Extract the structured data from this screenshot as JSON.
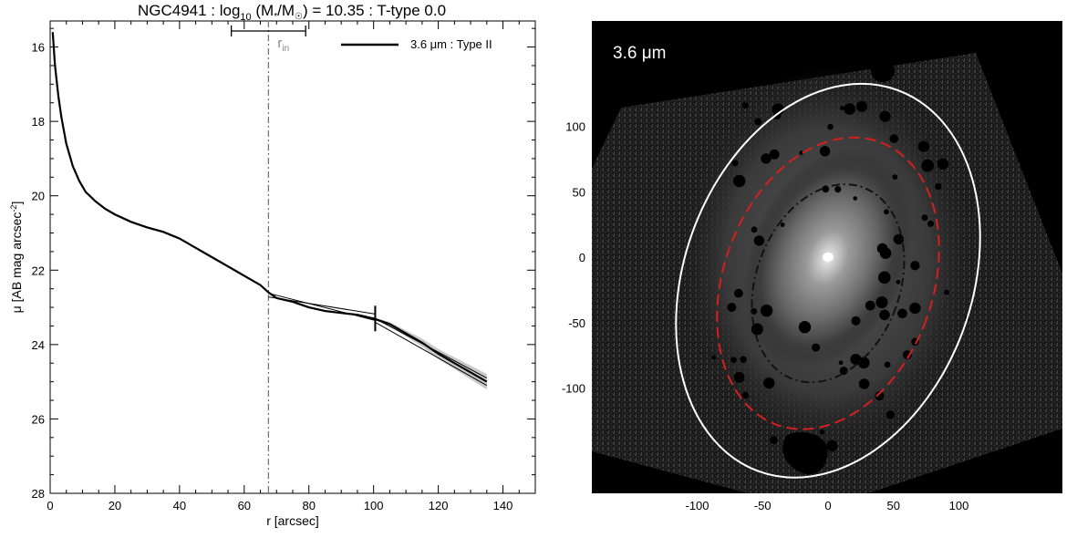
{
  "chart_data": [
    {
      "type": "line",
      "title": {
        "prefix": "NGC4941 : log",
        "sub10": "10",
        "paren_open": " (M",
        "star": "*",
        "slash_m": "/M",
        "sun": "☉",
        "rest": ") = 10.35 : T-type 0.0"
      },
      "xlabel": "r [arcsec]",
      "ylabel": {
        "prefix": "μ [AB mag arcsec",
        "sup": "-2",
        "suffix": "]"
      },
      "xlim": [
        0,
        150
      ],
      "ylim": [
        28,
        15.3
      ],
      "y_inverted": true,
      "xticks": [
        "0",
        "20",
        "40",
        "60",
        "80",
        "100",
        "120",
        "140"
      ],
      "yticks": [
        "16",
        "18",
        "20",
        "22",
        "24",
        "26",
        "28"
      ],
      "legend": {
        "position": "top-right",
        "label": "3.6 μm : Type II"
      },
      "r_in_label": "r",
      "r_in_sub": "in",
      "r_in": 67.5,
      "r_in_range": [
        56,
        79
      ],
      "break_marker": 100.5,
      "series": [
        {
          "name": "3.6 μm : Type II",
          "x": [
            0.8,
            1.5,
            2.5,
            3.5,
            5,
            7,
            9,
            11,
            14,
            17,
            20,
            25,
            30,
            35,
            40,
            45,
            50,
            55,
            60,
            65,
            67.5,
            70,
            75,
            80,
            85,
            90,
            95,
            100,
            105,
            110,
            115,
            120,
            125,
            130,
            135
          ],
          "y": [
            15.6,
            16.5,
            17.3,
            17.9,
            18.6,
            19.2,
            19.6,
            19.9,
            20.15,
            20.35,
            20.5,
            20.7,
            20.85,
            20.97,
            21.15,
            21.4,
            21.65,
            21.9,
            22.15,
            22.4,
            22.6,
            22.75,
            22.85,
            23.0,
            23.1,
            23.15,
            23.2,
            23.3,
            23.45,
            23.7,
            23.95,
            24.25,
            24.5,
            24.75,
            25.0
          ]
        }
      ],
      "fit_lines": [
        {
          "x": [
            67.5,
            100.5
          ],
          "y": [
            22.72,
            23.18
          ]
        },
        {
          "x": [
            67.5,
            100.5
          ],
          "y": [
            22.62,
            23.35
          ]
        },
        {
          "x": [
            100.5,
            135
          ],
          "y": [
            23.3,
            24.9
          ]
        },
        {
          "x": [
            100.5,
            135
          ],
          "y": [
            23.4,
            25.1
          ]
        }
      ]
    },
    {
      "type": "image",
      "label": "3.6 μm",
      "xticks": [
        "-100",
        "-50",
        "0",
        "50",
        "100"
      ],
      "yticks": [
        "100",
        "50",
        "0",
        "-50",
        "-100"
      ],
      "xlim": [
        -180,
        180
      ],
      "ylim": [
        -180,
        180
      ],
      "ellipses": [
        {
          "name": "outer",
          "color": "#ffffff",
          "style": "solid",
          "cx": 0,
          "cy": -18,
          "rx": 110,
          "ry": 155
        },
        {
          "name": "break",
          "color": "#d42020",
          "style": "dashed",
          "cx": 0,
          "cy": -20,
          "rx": 80,
          "ry": 115
        },
        {
          "name": "inner",
          "color": "#111111",
          "style": "dashdot",
          "cx": 0,
          "cy": -20,
          "rx": 55,
          "ry": 78
        }
      ]
    }
  ]
}
